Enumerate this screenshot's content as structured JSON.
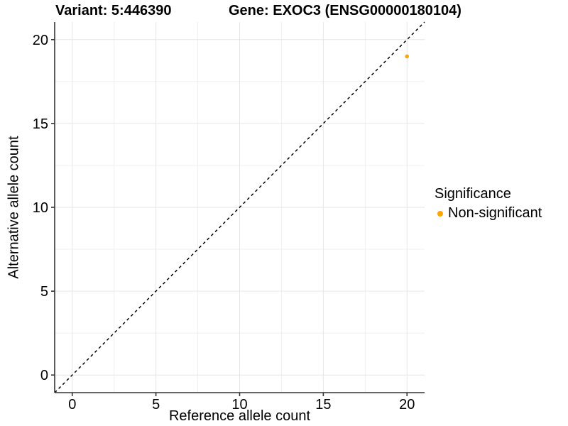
{
  "header": {
    "title_variant": "Variant: 5:446390",
    "title_gene": "Gene: EXOC3 (ENSG00000180104)"
  },
  "chart_data": {
    "type": "scatter",
    "title_left": "Variant: 5:446390",
    "title_right": "Gene: EXOC3 (ENSG00000180104)",
    "xlabel": "Reference allele count",
    "ylabel": "Alternative allele count",
    "xlim": [
      -1.05,
      21.05
    ],
    "ylim": [
      -1.05,
      21.05
    ],
    "x_ticks": [
      0,
      5,
      10,
      15,
      20
    ],
    "y_ticks": [
      0,
      5,
      10,
      15,
      20
    ],
    "x_minor_ticks": [
      2.5,
      7.5,
      12.5,
      17.5
    ],
    "y_minor_ticks": [
      2.5,
      7.5,
      12.5,
      17.5
    ],
    "grid": true,
    "legend_position": "right",
    "series": [
      {
        "name": "Non-significant",
        "color": "#FFA500",
        "marker_radius": 2.8,
        "points": [
          {
            "x": 20,
            "y": 19
          }
        ]
      }
    ],
    "reference_line": {
      "type": "identity",
      "slope": 1,
      "intercept": 0,
      "style": "dashed",
      "color": "#000000"
    },
    "legend": {
      "title": "Significance",
      "items": [
        {
          "label": "Non-significant",
          "color": "#FFA500"
        }
      ]
    }
  },
  "style": {
    "background": "#FFFFFF",
    "axis_line_color": "#333333",
    "tick_mark_color": "#333333",
    "grid_major_color": "#E6E6E6",
    "grid_minor_color": "#F0F0F0",
    "text_color": "#000000"
  }
}
